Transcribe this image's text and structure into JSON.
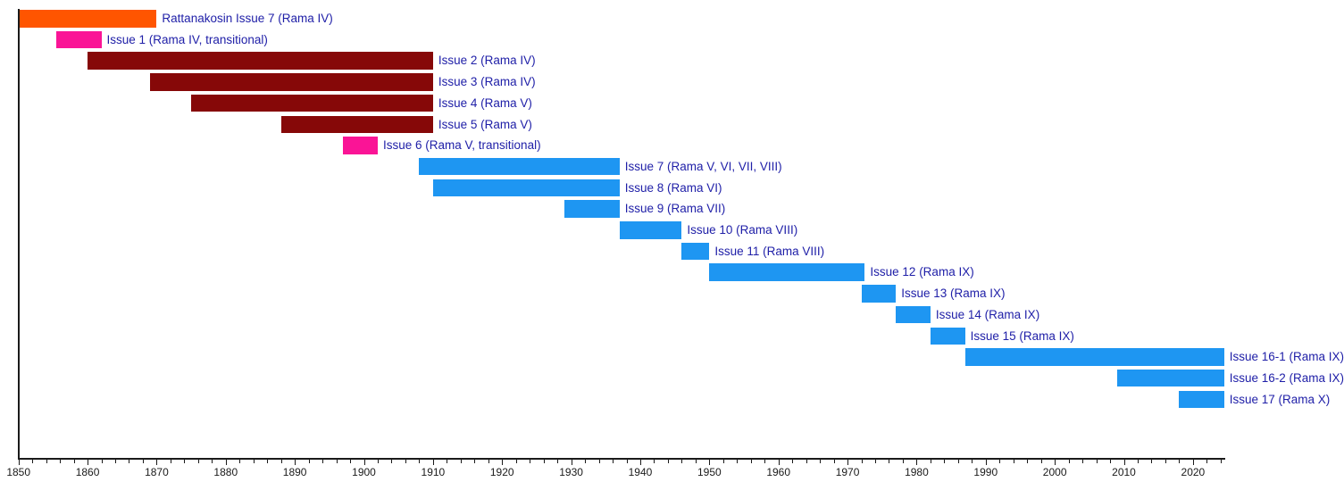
{
  "chart_data": {
    "type": "bar",
    "subtype": "horizontal-gantt-timeline",
    "title": "",
    "legend": "none",
    "grid": "off",
    "x_axis": {
      "min": 1850,
      "max": 2024.5,
      "major_tick_step": 10,
      "minor_tick_step": 2,
      "tick_labels": [
        "1850",
        "1860",
        "1870",
        "1880",
        "1890",
        "1900",
        "1910",
        "1920",
        "1930",
        "1940",
        "1950",
        "1960",
        "1970",
        "1980",
        "1990",
        "2000",
        "2010",
        "2020"
      ]
    },
    "colors": {
      "orange": "#FF5500",
      "pink": "#FA1496",
      "darkred": "#860808",
      "blue": "#1E96F2"
    },
    "label_text_color": "#2020A8",
    "axis_color": "#1A1A1A",
    "bars": [
      {
        "label": "Rattanakosin Issue 7 (Rama IV)",
        "start": 1850,
        "end": 1870,
        "color": "orange"
      },
      {
        "label": "Issue 1 (Rama IV, transitional)",
        "start": 1855.5,
        "end": 1862,
        "color": "pink"
      },
      {
        "label": "Issue 2 (Rama IV)",
        "start": 1860,
        "end": 1910,
        "color": "darkred"
      },
      {
        "label": "Issue 3 (Rama IV)",
        "start": 1869,
        "end": 1910,
        "color": "darkred"
      },
      {
        "label": "Issue 4 (Rama V)",
        "start": 1875,
        "end": 1910,
        "color": "darkred"
      },
      {
        "label": "Issue 5 (Rama V)",
        "start": 1888,
        "end": 1910,
        "color": "darkred"
      },
      {
        "label": "Issue 6 (Rama V, transitional)",
        "start": 1897,
        "end": 1902,
        "color": "pink"
      },
      {
        "label": "Issue 7 (Rama V, VI, VII, VIII)",
        "start": 1908,
        "end": 1937,
        "color": "blue"
      },
      {
        "label": "Issue 8 (Rama VI)",
        "start": 1910,
        "end": 1937,
        "color": "blue"
      },
      {
        "label": "Issue 9 (Rama VII)",
        "start": 1929,
        "end": 1937,
        "color": "blue"
      },
      {
        "label": "Issue 10 (Rama VIII)",
        "start": 1937,
        "end": 1946,
        "color": "blue"
      },
      {
        "label": "Issue 11 (Rama VIII)",
        "start": 1946,
        "end": 1950,
        "color": "blue"
      },
      {
        "label": "Issue 12 (Rama IX)",
        "start": 1950,
        "end": 1972.5,
        "color": "blue"
      },
      {
        "label": "Issue 13 (Rama IX)",
        "start": 1972,
        "end": 1977,
        "color": "blue"
      },
      {
        "label": "Issue 14 (Rama IX)",
        "start": 1977,
        "end": 1982,
        "color": "blue"
      },
      {
        "label": "Issue 15 (Rama IX)",
        "start": 1982,
        "end": 1987,
        "color": "blue"
      },
      {
        "label": "Issue 16-1 (Rama IX)",
        "start": 1987,
        "end": 2024.5,
        "color": "blue"
      },
      {
        "label": "Issue 16-2 (Rama IX)",
        "start": 2009,
        "end": 2024.5,
        "color": "blue"
      },
      {
        "label": "Issue 17 (Rama X)",
        "start": 2018,
        "end": 2024.5,
        "color": "blue"
      }
    ]
  }
}
